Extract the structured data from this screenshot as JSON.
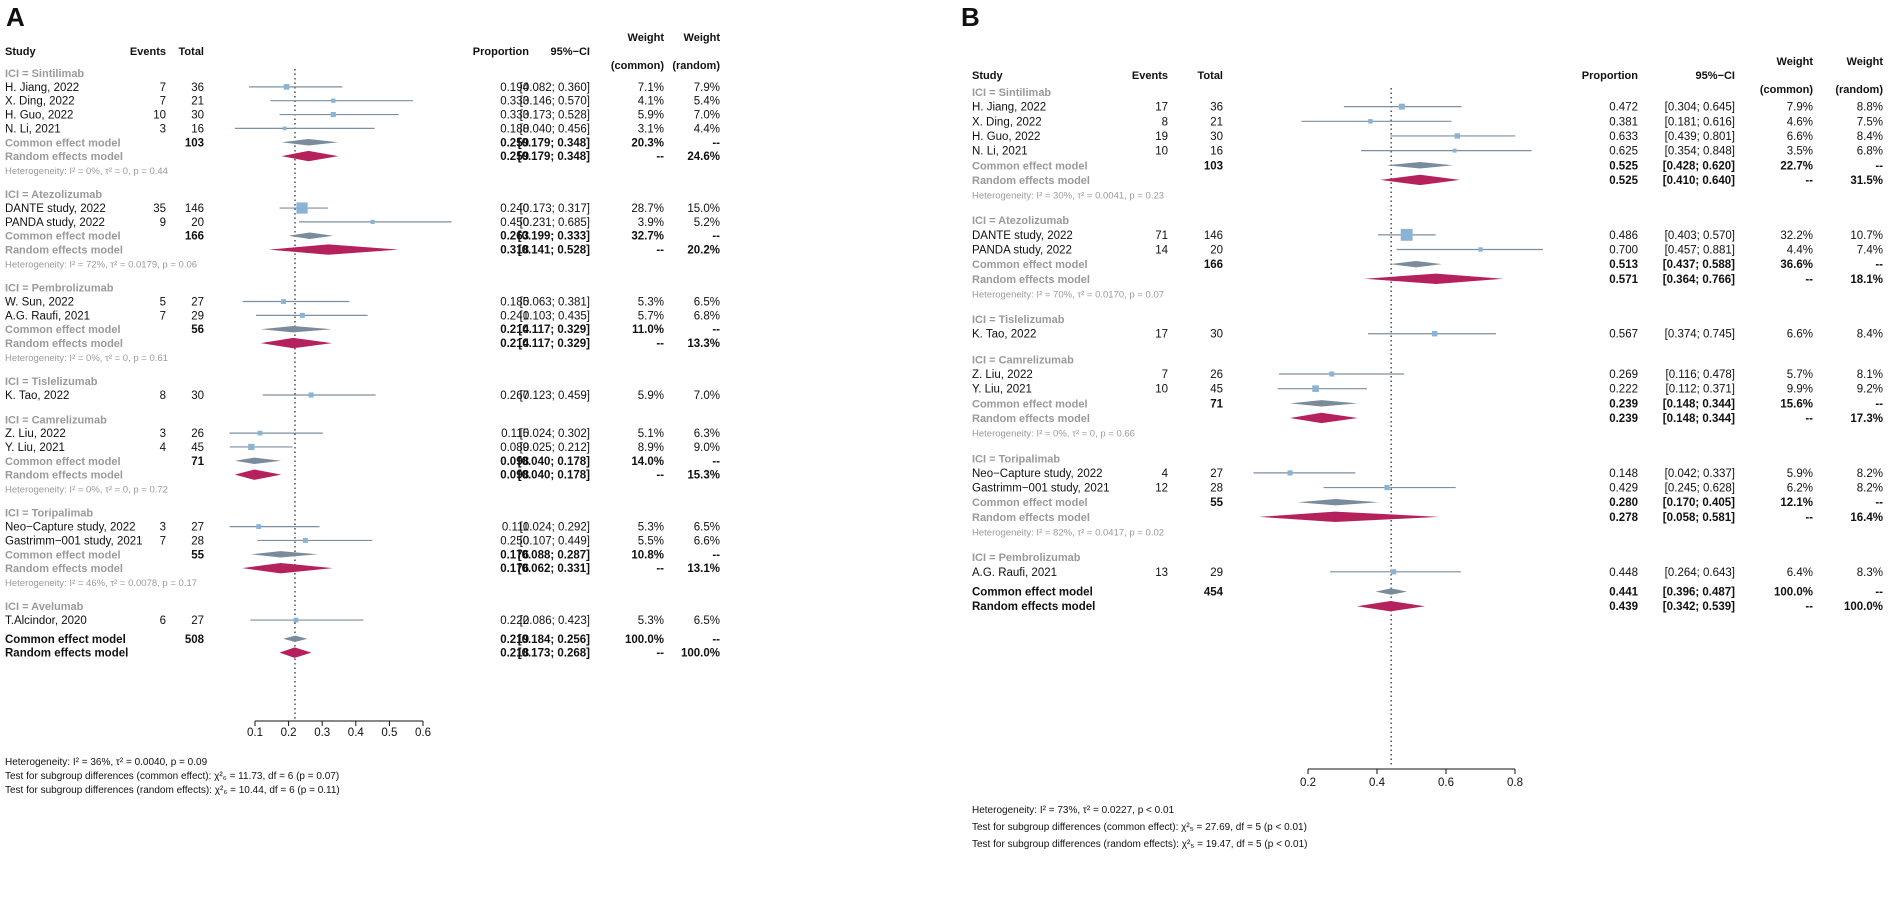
{
  "chart_data": [
    {
      "type": "forest",
      "panel": "A",
      "xlim": [
        0.1,
        0.6
      ],
      "ticks": [
        0.1,
        0.2,
        0.3,
        0.4,
        0.5,
        0.6
      ],
      "tick_labels": [
        "0.1",
        "0.2",
        "0.3",
        "0.4",
        "0.5",
        "0.6"
      ],
      "ref_line": 0.219,
      "headers": {
        "study": "Study",
        "events": "Events",
        "total": "Total",
        "proportion": "Proportion",
        "ci": "95%−CI",
        "weight_common_1": "Weight",
        "weight_common_2": "(common)",
        "weight_random_1": "Weight",
        "weight_random_2": "(random)"
      },
      "rows": [
        {
          "kind": "group",
          "label": "ICI = Sintilimab"
        },
        {
          "kind": "study",
          "study": "H. Jiang, 2022",
          "events": "7",
          "total": "36",
          "prop": 0.194,
          "lo": 0.082,
          "hi": 0.36,
          "prop_txt": "0.194",
          "ci_txt": "[0.082; 0.360]",
          "wc": "7.1%",
          "wr": "7.9%"
        },
        {
          "kind": "study",
          "study": "X. Ding, 2022",
          "events": "7",
          "total": "21",
          "prop": 0.333,
          "lo": 0.146,
          "hi": 0.57,
          "prop_txt": "0.333",
          "ci_txt": "[0.146; 0.570]",
          "wc": "4.1%",
          "wr": "5.4%"
        },
        {
          "kind": "study",
          "study": "H. Guo, 2022",
          "events": "10",
          "total": "30",
          "prop": 0.333,
          "lo": 0.173,
          "hi": 0.528,
          "prop_txt": "0.333",
          "ci_txt": "[0.173; 0.528]",
          "wc": "5.9%",
          "wr": "7.0%"
        },
        {
          "kind": "study",
          "study": "N. Li, 2021",
          "events": "3",
          "total": "16",
          "prop": 0.188,
          "lo": 0.04,
          "hi": 0.456,
          "prop_txt": "0.188",
          "ci_txt": "[0.040; 0.456]",
          "wc": "3.1%",
          "wr": "4.4%"
        },
        {
          "kind": "common",
          "study": "Common effect model",
          "total": "103",
          "prop": 0.259,
          "lo": 0.179,
          "hi": 0.348,
          "prop_txt": "0.259",
          "ci_txt": "[0.179; 0.348]",
          "wc": "20.3%",
          "wr": "--"
        },
        {
          "kind": "random",
          "study": "Random effects model",
          "prop": 0.259,
          "lo": 0.179,
          "hi": 0.348,
          "prop_txt": "0.259",
          "ci_txt": "[0.179; 0.348]",
          "wc": "--",
          "wr": "24.6%"
        },
        {
          "kind": "het",
          "label": "Heterogeneity: I² = 0%, τ² = 0, p = 0.44"
        },
        {
          "kind": "group",
          "label": "ICI = Atezolizumab"
        },
        {
          "kind": "study",
          "study": "DANTE study, 2022",
          "events": "35",
          "total": "146",
          "prop": 0.24,
          "lo": 0.173,
          "hi": 0.317,
          "prop_txt": "0.240",
          "ci_txt": "[0.173; 0.317]",
          "wc": "28.7%",
          "wr": "15.0%"
        },
        {
          "kind": "study",
          "study": "PANDA study, 2022",
          "events": "9",
          "total": "20",
          "prop": 0.45,
          "lo": 0.231,
          "hi": 0.685,
          "prop_txt": "0.450",
          "ci_txt": "[0.231; 0.685]",
          "wc": "3.9%",
          "wr": "5.2%"
        },
        {
          "kind": "common",
          "study": "Common effect model",
          "total": "166",
          "prop": 0.263,
          "lo": 0.199,
          "hi": 0.333,
          "prop_txt": "0.263",
          "ci_txt": "[0.199; 0.333]",
          "wc": "32.7%",
          "wr": "--"
        },
        {
          "kind": "random",
          "study": "Random effects model",
          "prop": 0.318,
          "lo": 0.141,
          "hi": 0.528,
          "prop_txt": "0.318",
          "ci_txt": "[0.141; 0.528]",
          "wc": "--",
          "wr": "20.2%"
        },
        {
          "kind": "het",
          "label": "Heterogeneity: I² = 72%, τ² = 0.0179, p = 0.06"
        },
        {
          "kind": "group",
          "label": "ICI = Pembrolizumab"
        },
        {
          "kind": "study",
          "study": "W. Sun, 2022",
          "events": "5",
          "total": "27",
          "prop": 0.185,
          "lo": 0.063,
          "hi": 0.381,
          "prop_txt": "0.185",
          "ci_txt": "[0.063; 0.381]",
          "wc": "5.3%",
          "wr": "6.5%"
        },
        {
          "kind": "study",
          "study": "A.G. Raufi, 2021",
          "events": "7",
          "total": "29",
          "prop": 0.241,
          "lo": 0.103,
          "hi": 0.435,
          "prop_txt": "0.241",
          "ci_txt": "[0.103; 0.435]",
          "wc": "5.7%",
          "wr": "6.8%"
        },
        {
          "kind": "common",
          "study": "Common effect model",
          "total": "56",
          "prop": 0.214,
          "lo": 0.117,
          "hi": 0.329,
          "prop_txt": "0.214",
          "ci_txt": "[0.117; 0.329]",
          "wc": "11.0%",
          "wr": "--"
        },
        {
          "kind": "random",
          "study": "Random effects model",
          "prop": 0.214,
          "lo": 0.117,
          "hi": 0.329,
          "prop_txt": "0.214",
          "ci_txt": "[0.117; 0.329]",
          "wc": "--",
          "wr": "13.3%"
        },
        {
          "kind": "het",
          "label": "Heterogeneity: I² = 0%, τ² = 0, p = 0.61"
        },
        {
          "kind": "group",
          "label": "ICI = Tislelizumab"
        },
        {
          "kind": "study",
          "study": "K. Tao, 2022",
          "events": "8",
          "total": "30",
          "prop": 0.267,
          "lo": 0.123,
          "hi": 0.459,
          "prop_txt": "0.267",
          "ci_txt": "[0.123; 0.459]",
          "wc": "5.9%",
          "wr": "7.0%"
        },
        {
          "kind": "group",
          "label": "ICI = Camrelizumab"
        },
        {
          "kind": "study",
          "study": "Z. Liu, 2022",
          "events": "3",
          "total": "26",
          "prop": 0.115,
          "lo": 0.024,
          "hi": 0.302,
          "prop_txt": "0.115",
          "ci_txt": "[0.024; 0.302]",
          "wc": "5.1%",
          "wr": "6.3%"
        },
        {
          "kind": "study",
          "study": "Y. Liu, 2021",
          "events": "4",
          "total": "45",
          "prop": 0.089,
          "lo": 0.025,
          "hi": 0.212,
          "prop_txt": "0.089",
          "ci_txt": "[0.025; 0.212]",
          "wc": "8.9%",
          "wr": "9.0%"
        },
        {
          "kind": "common",
          "study": "Common effect model",
          "total": "71",
          "prop": 0.098,
          "lo": 0.04,
          "hi": 0.178,
          "prop_txt": "0.098",
          "ci_txt": "[0.040; 0.178]",
          "wc": "14.0%",
          "wr": "--"
        },
        {
          "kind": "random",
          "study": "Random effects model",
          "prop": 0.098,
          "lo": 0.04,
          "hi": 0.178,
          "prop_txt": "0.098",
          "ci_txt": "[0.040; 0.178]",
          "wc": "--",
          "wr": "15.3%"
        },
        {
          "kind": "het",
          "label": "Heterogeneity: I² = 0%, τ² = 0, p = 0.72"
        },
        {
          "kind": "group",
          "label": "ICI = Toripalimab"
        },
        {
          "kind": "study",
          "study": "Neo−Capture study, 2022",
          "events": "3",
          "total": "27",
          "prop": 0.111,
          "lo": 0.024,
          "hi": 0.292,
          "prop_txt": "0.111",
          "ci_txt": "[0.024; 0.292]",
          "wc": "5.3%",
          "wr": "6.5%"
        },
        {
          "kind": "study",
          "study": "Gastrimm−001 study, 2021",
          "events": "7",
          "total": "28",
          "prop": 0.25,
          "lo": 0.107,
          "hi": 0.449,
          "prop_txt": "0.250",
          "ci_txt": "[0.107; 0.449]",
          "wc": "5.5%",
          "wr": "6.6%"
        },
        {
          "kind": "common",
          "study": "Common effect model",
          "total": "55",
          "prop": 0.176,
          "lo": 0.088,
          "hi": 0.287,
          "prop_txt": "0.176",
          "ci_txt": "[0.088; 0.287]",
          "wc": "10.8%",
          "wr": "--"
        },
        {
          "kind": "random",
          "study": "Random effects model",
          "prop": 0.176,
          "lo": 0.062,
          "hi": 0.331,
          "prop_txt": "0.176",
          "ci_txt": "[0.062; 0.331]",
          "wc": "--",
          "wr": "13.1%"
        },
        {
          "kind": "het",
          "label": "Heterogeneity: I² = 46%, τ² = 0.0078, p = 0.17"
        },
        {
          "kind": "group",
          "label": "ICI = Avelumab"
        },
        {
          "kind": "study",
          "study": "T.Alcindor, 2020",
          "events": "6",
          "total": "27",
          "prop": 0.222,
          "lo": 0.086,
          "hi": 0.423,
          "prop_txt": "0.222",
          "ci_txt": "[0.086; 0.423]",
          "wc": "5.3%",
          "wr": "6.5%"
        },
        {
          "kind": "gap"
        },
        {
          "kind": "overall_common",
          "study": "Common effect model",
          "total": "508",
          "prop": 0.219,
          "lo": 0.184,
          "hi": 0.256,
          "prop_txt": "0.219",
          "ci_txt": "[0.184; 0.256]",
          "wc": "100.0%",
          "wr": "--"
        },
        {
          "kind": "overall_random",
          "study": "Random effects model",
          "prop": 0.218,
          "lo": 0.173,
          "hi": 0.268,
          "prop_txt": "0.218",
          "ci_txt": "[0.173; 0.268]",
          "wc": "--",
          "wr": "100.0%"
        }
      ],
      "footnotes": [
        "Heterogeneity: I² = 36%, τ² = 0.0040, p = 0.09",
        "Test for subgroup differences (common effect): χ²₆ = 11.73, df = 6 (p = 0.07)",
        "Test for subgroup differences (random effects): χ²₆ = 10.44, df = 6 (p = 0.11)"
      ]
    },
    {
      "type": "forest",
      "panel": "B",
      "xlim": [
        0.2,
        0.8
      ],
      "ticks": [
        0.2,
        0.4,
        0.6,
        0.8
      ],
      "tick_labels": [
        "0.2",
        "0.4",
        "0.6",
        "0.8"
      ],
      "ref_line": 0.441,
      "headers": {
        "study": "Study",
        "events": "Events",
        "total": "Total",
        "proportion": "Proportion",
        "ci": "95%−CI",
        "weight_common_1": "Weight",
        "weight_common_2": "(common)",
        "weight_random_1": "Weight",
        "weight_random_2": "(random)"
      },
      "rows": [
        {
          "kind": "group",
          "label": "ICI = Sintilimab"
        },
        {
          "kind": "study",
          "study": "H. Jiang, 2022",
          "events": "17",
          "total": "36",
          "prop": 0.472,
          "lo": 0.304,
          "hi": 0.645,
          "prop_txt": "0.472",
          "ci_txt": "[0.304; 0.645]",
          "wc": "7.9%",
          "wr": "8.8%"
        },
        {
          "kind": "study",
          "study": "X. Ding, 2022",
          "events": "8",
          "total": "21",
          "prop": 0.381,
          "lo": 0.181,
          "hi": 0.616,
          "prop_txt": "0.381",
          "ci_txt": "[0.181; 0.616]",
          "wc": "4.6%",
          "wr": "7.5%"
        },
        {
          "kind": "study",
          "study": "H. Guo, 2022",
          "events": "19",
          "total": "30",
          "prop": 0.633,
          "lo": 0.439,
          "hi": 0.801,
          "prop_txt": "0.633",
          "ci_txt": "[0.439; 0.801]",
          "wc": "6.6%",
          "wr": "8.4%"
        },
        {
          "kind": "study",
          "study": "N. Li, 2021",
          "events": "10",
          "total": "16",
          "prop": 0.625,
          "lo": 0.354,
          "hi": 0.848,
          "prop_txt": "0.625",
          "ci_txt": "[0.354; 0.848]",
          "wc": "3.5%",
          "wr": "6.8%"
        },
        {
          "kind": "common",
          "study": "Common effect model",
          "total": "103",
          "prop": 0.525,
          "lo": 0.428,
          "hi": 0.62,
          "prop_txt": "0.525",
          "ci_txt": "[0.428; 0.620]",
          "wc": "22.7%",
          "wr": "--"
        },
        {
          "kind": "random",
          "study": "Random effects model",
          "prop": 0.525,
          "lo": 0.41,
          "hi": 0.64,
          "prop_txt": "0.525",
          "ci_txt": "[0.410; 0.640]",
          "wc": "--",
          "wr": "31.5%"
        },
        {
          "kind": "het",
          "label": "Heterogeneity: I² = 30%, τ² = 0.0041, p = 0.23"
        },
        {
          "kind": "group",
          "label": "ICI = Atezolizumab"
        },
        {
          "kind": "study",
          "study": "DANTE study, 2022",
          "events": "71",
          "total": "146",
          "prop": 0.486,
          "lo": 0.403,
          "hi": 0.57,
          "prop_txt": "0.486",
          "ci_txt": "[0.403; 0.570]",
          "wc": "32.2%",
          "wr": "10.7%"
        },
        {
          "kind": "study",
          "study": "PANDA study, 2022",
          "events": "14",
          "total": "20",
          "prop": 0.7,
          "lo": 0.457,
          "hi": 0.881,
          "prop_txt": "0.700",
          "ci_txt": "[0.457; 0.881]",
          "wc": "4.4%",
          "wr": "7.4%"
        },
        {
          "kind": "common",
          "study": "Common effect model",
          "total": "166",
          "prop": 0.513,
          "lo": 0.437,
          "hi": 0.588,
          "prop_txt": "0.513",
          "ci_txt": "[0.437; 0.588]",
          "wc": "36.6%",
          "wr": "--"
        },
        {
          "kind": "random",
          "study": "Random effects model",
          "prop": 0.571,
          "lo": 0.364,
          "hi": 0.766,
          "prop_txt": "0.571",
          "ci_txt": "[0.364; 0.766]",
          "wc": "--",
          "wr": "18.1%"
        },
        {
          "kind": "het",
          "label": "Heterogeneity: I² = 70%, τ² = 0.0170, p = 0.07"
        },
        {
          "kind": "group",
          "label": "ICI = Tislelizumab"
        },
        {
          "kind": "study",
          "study": "K. Tao, 2022",
          "events": "17",
          "total": "30",
          "prop": 0.567,
          "lo": 0.374,
          "hi": 0.745,
          "prop_txt": "0.567",
          "ci_txt": "[0.374; 0.745]",
          "wc": "6.6%",
          "wr": "8.4%"
        },
        {
          "kind": "group",
          "label": "ICI = Camrelizumab"
        },
        {
          "kind": "study",
          "study": "Z. Liu, 2022",
          "events": "7",
          "total": "26",
          "prop": 0.269,
          "lo": 0.116,
          "hi": 0.478,
          "prop_txt": "0.269",
          "ci_txt": "[0.116; 0.478]",
          "wc": "5.7%",
          "wr": "8.1%"
        },
        {
          "kind": "study",
          "study": "Y. Liu, 2021",
          "events": "10",
          "total": "45",
          "prop": 0.222,
          "lo": 0.112,
          "hi": 0.371,
          "prop_txt": "0.222",
          "ci_txt": "[0.112; 0.371]",
          "wc": "9.9%",
          "wr": "9.2%"
        },
        {
          "kind": "common",
          "study": "Common effect model",
          "total": "71",
          "prop": 0.239,
          "lo": 0.148,
          "hi": 0.344,
          "prop_txt": "0.239",
          "ci_txt": "[0.148; 0.344]",
          "wc": "15.6%",
          "wr": "--"
        },
        {
          "kind": "random",
          "study": "Random effects model",
          "prop": 0.239,
          "lo": 0.148,
          "hi": 0.344,
          "prop_txt": "0.239",
          "ci_txt": "[0.148; 0.344]",
          "wc": "--",
          "wr": "17.3%"
        },
        {
          "kind": "het",
          "label": "Heterogeneity: I² = 0%, τ² = 0, p = 0.66"
        },
        {
          "kind": "group",
          "label": "ICI = Toripalimab"
        },
        {
          "kind": "study",
          "study": "Neo−Capture study, 2022",
          "events": "4",
          "total": "27",
          "prop": 0.148,
          "lo": 0.042,
          "hi": 0.337,
          "prop_txt": "0.148",
          "ci_txt": "[0.042; 0.337]",
          "wc": "5.9%",
          "wr": "8.2%"
        },
        {
          "kind": "study",
          "study": "Gastrimm−001 study, 2021",
          "events": "12",
          "total": "28",
          "prop": 0.429,
          "lo": 0.245,
          "hi": 0.628,
          "prop_txt": "0.429",
          "ci_txt": "[0.245; 0.628]",
          "wc": "6.2%",
          "wr": "8.2%"
        },
        {
          "kind": "common",
          "study": "Common effect model",
          "total": "55",
          "prop": 0.28,
          "lo": 0.17,
          "hi": 0.405,
          "prop_txt": "0.280",
          "ci_txt": "[0.170; 0.405]",
          "wc": "12.1%",
          "wr": "--"
        },
        {
          "kind": "random",
          "study": "Random effects model",
          "prop": 0.278,
          "lo": 0.058,
          "hi": 0.581,
          "prop_txt": "0.278",
          "ci_txt": "[0.058; 0.581]",
          "wc": "--",
          "wr": "16.4%"
        },
        {
          "kind": "het",
          "label": "Heterogeneity: I² = 82%, τ² = 0.0417, p = 0.02"
        },
        {
          "kind": "group",
          "label": "ICI = Pembrolizumab"
        },
        {
          "kind": "study",
          "study": "A.G. Raufi, 2021",
          "events": "13",
          "total": "29",
          "prop": 0.448,
          "lo": 0.264,
          "hi": 0.643,
          "prop_txt": "0.448",
          "ci_txt": "[0.264; 0.643]",
          "wc": "6.4%",
          "wr": "8.3%"
        },
        {
          "kind": "gap"
        },
        {
          "kind": "overall_common",
          "study": "Common effect model",
          "total": "454",
          "prop": 0.441,
          "lo": 0.396,
          "hi": 0.487,
          "prop_txt": "0.441",
          "ci_txt": "[0.396; 0.487]",
          "wc": "100.0%",
          "wr": "--"
        },
        {
          "kind": "overall_random",
          "study": "Random effects model",
          "prop": 0.439,
          "lo": 0.342,
          "hi": 0.539,
          "prop_txt": "0.439",
          "ci_txt": "[0.342; 0.539]",
          "wc": "--",
          "wr": "100.0%"
        }
      ],
      "footnotes": [
        "Heterogeneity: I² = 73%, τ² = 0.0227, p < 0.01",
        "Test for subgroup differences (common effect): χ²₅ = 27.69, df = 5 (p < 0.01)",
        "Test for subgroup differences (random effects): χ²₅ = 19.47, df = 5 (p < 0.01)"
      ]
    }
  ],
  "colors": {
    "study_line": "#7d8fa0",
    "study_square": "#8ab4d6",
    "common_diamond": "#7a8c9c",
    "random_diamond": "#b5215d",
    "group_label": "#9a9a9a",
    "ref_line": "#333333"
  }
}
